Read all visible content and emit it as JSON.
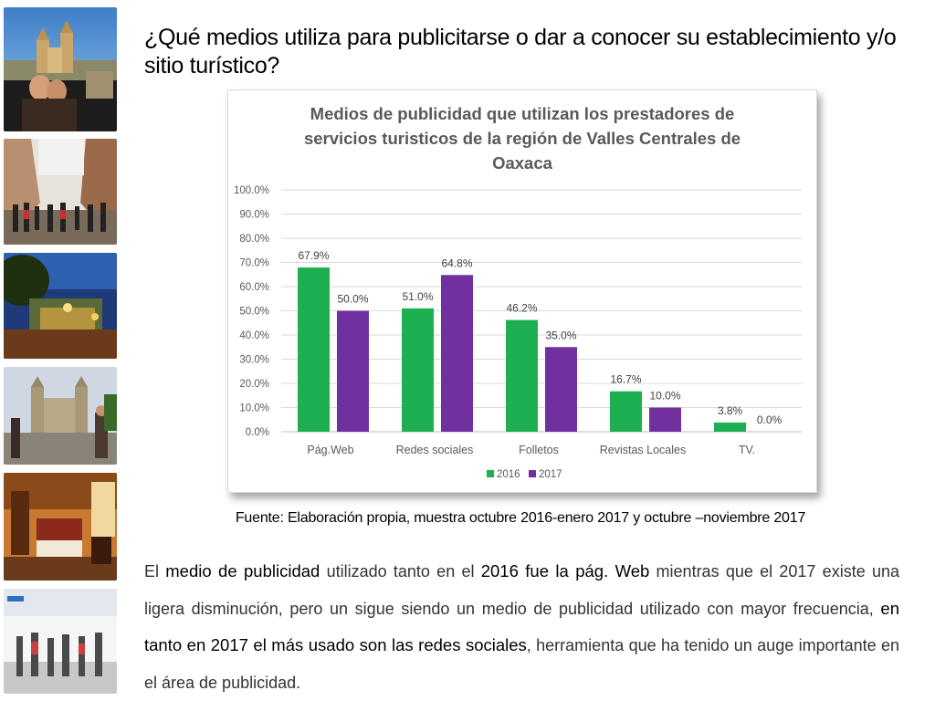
{
  "title": "¿Qué medios utiliza para publicitarse o dar a conocer su establecimiento y/o sitio turístico?",
  "chart_data": {
    "type": "bar",
    "title": "Medios de publicidad que utilizan los prestadores de servicios turisticos de la región de Valles Centrales de Oaxaca",
    "title_lines": [
      "Medios de publicidad que utilizan los prestadores de",
      "servicios turisticos de la región de Valles Centrales de",
      "Oaxaca"
    ],
    "categories": [
      "Pág.Web",
      "Redes sociales",
      "Folletos",
      "Revistas Locales",
      "TV."
    ],
    "series": [
      {
        "name": "2016",
        "color": "#1eb050",
        "values": [
          67.9,
          51.0,
          46.2,
          16.7,
          3.8
        ],
        "labels": [
          "67.9%",
          "51.0%",
          "46.2%",
          "16.7%",
          "3.8%"
        ]
      },
      {
        "name": "2017",
        "color": "#7030a0",
        "values": [
          50.0,
          64.8,
          35.0,
          10.0,
          0.0
        ],
        "labels": [
          "50.0%",
          "64.8%",
          "35.0%",
          "10.0%",
          "0.0%"
        ]
      }
    ],
    "yticks": [
      "0.0%",
      "10.0%",
      "20.0%",
      "30.0%",
      "40.0%",
      "50.0%",
      "60.0%",
      "70.0%",
      "80.0%",
      "90.0%",
      "100.0%"
    ],
    "ylim": [
      0,
      100
    ],
    "grid": true,
    "legend_position": "bottom",
    "xlabel": "",
    "ylabel": ""
  },
  "source": "Fuente: Elaboración propia, muestra octubre 2016-enero 2017 y octubre –noviembre 2017",
  "paragraph": {
    "t1": "El ",
    "b1": "medio de publicidad",
    "t2": " utilizado tanto en el ",
    "b2": "2016 fue la pág. Web",
    "t3": " mientras que el 2017 existe una ligera disminución, pero un sigue siendo un medio de publicidad utilizado con mayor frecuencia, ",
    "b3": "en tanto en 2017 el más usado son las redes sociales",
    "t4": ", herramienta que ha tenido un auge importante en el área de publicidad."
  },
  "photos": [
    {
      "icon": "oaxaca-cathedral-pool-photo"
    },
    {
      "icon": "street-crowd-photo"
    },
    {
      "icon": "night-garden-photo"
    },
    {
      "icon": "santo-domingo-church-photo"
    },
    {
      "icon": "hotel-room-photo"
    },
    {
      "icon": "airport-travelers-photo"
    }
  ]
}
